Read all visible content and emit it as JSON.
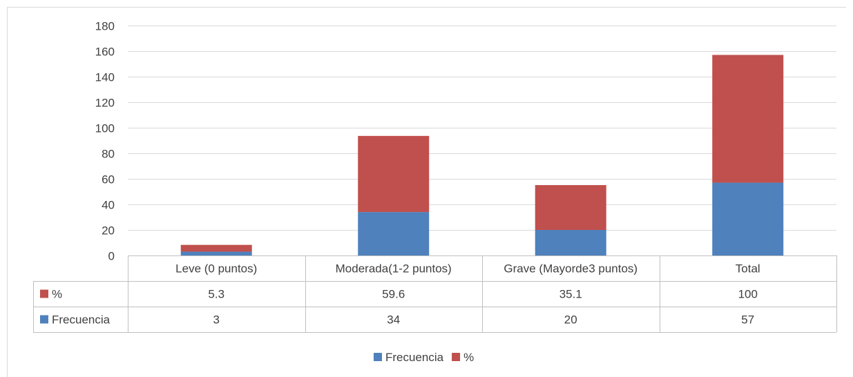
{
  "chart_data": {
    "type": "bar",
    "stacked": true,
    "categories": [
      "Leve (0 puntos)",
      "Moderada(1-2 puntos)",
      "Grave (Mayorde3 puntos)",
      "Total"
    ],
    "series": [
      {
        "name": "Frecuencia",
        "values": [
          3,
          34,
          20,
          57
        ],
        "labels": [
          "3",
          "34",
          "20",
          "57"
        ],
        "color": "#4f81bd"
      },
      {
        "name": "%",
        "values": [
          5.3,
          59.6,
          35.1,
          100
        ],
        "labels": [
          "5.3",
          "59.6",
          "35.1",
          "100"
        ],
        "color": "#c0504d"
      }
    ],
    "table_rows": [
      "%",
      "Frecuencia"
    ],
    "ylim": [
      0,
      180
    ],
    "yticks": [
      "0",
      "20",
      "40",
      "60",
      "80",
      "100",
      "120",
      "140",
      "160",
      "180"
    ],
    "grid": true,
    "legend": "bottom",
    "data_table": true
  }
}
